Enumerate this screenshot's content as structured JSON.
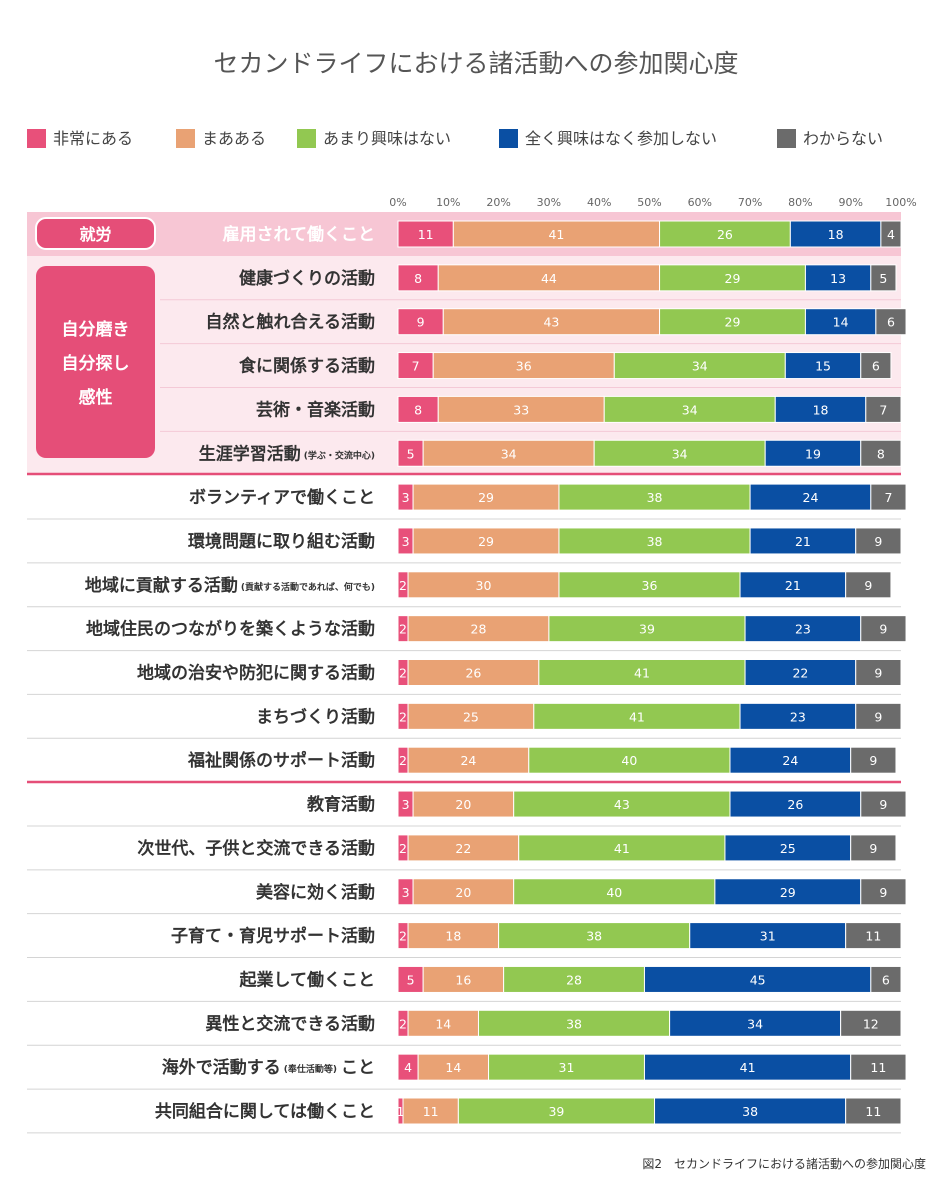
{
  "chart_data": {
    "type": "bar",
    "orientation": "horizontal-stacked",
    "title": "セカンドライフにおける諸活動への参加関心度",
    "caption": "図2　セカンドライフにおける諸活動への参加関心度",
    "xlim": [
      0,
      100
    ],
    "x_ticks": [
      "0%",
      "10%",
      "20%",
      "30%",
      "40%",
      "50%",
      "60%",
      "70%",
      "80%",
      "90%",
      "100%"
    ],
    "series": [
      {
        "name": "非常にある",
        "color": "#e8507a"
      },
      {
        "name": "まあある",
        "color": "#e9a274"
      },
      {
        "name": "あまり興味はない",
        "color": "#92c851"
      },
      {
        "name": "全く興味はなく参加しない",
        "color": "#0a4fa3"
      },
      {
        "name": "わからない",
        "color": "#6b6b6b"
      }
    ],
    "groups": [
      {
        "label": "就労",
        "start": 0,
        "end": 0
      },
      {
        "label": "自分磨き\n自分探し\n感性",
        "start": 1,
        "end": 5
      }
    ],
    "rows": [
      {
        "label": "雇用されて働くこと",
        "note": "",
        "values": [
          11,
          41,
          26,
          18,
          4
        ]
      },
      {
        "label": "健康づくりの活動",
        "note": "",
        "values": [
          8,
          44,
          29,
          13,
          5
        ]
      },
      {
        "label": "自然と触れ合える活動",
        "note": "",
        "values": [
          9,
          43,
          29,
          14,
          6
        ]
      },
      {
        "label": "食に関係する活動",
        "note": "",
        "values": [
          7,
          36,
          34,
          15,
          6
        ]
      },
      {
        "label": "芸術・音楽活動",
        "note": "",
        "values": [
          8,
          33,
          34,
          18,
          7
        ]
      },
      {
        "label": "生涯学習活動",
        "note": "(学ぶ・交流中心)",
        "values": [
          5,
          34,
          34,
          19,
          8
        ]
      },
      {
        "label": "ボランティアで働くこと",
        "note": "",
        "values": [
          3,
          29,
          38,
          24,
          7
        ]
      },
      {
        "label": "環境問題に取り組む活動",
        "note": "",
        "values": [
          3,
          29,
          38,
          21,
          9
        ]
      },
      {
        "label": "地域に貢献する活動",
        "note": "(貢献する活動であれば、何でも)",
        "values": [
          2,
          30,
          36,
          21,
          9
        ]
      },
      {
        "label": "地域住民のつながりを築くような活動",
        "note": "",
        "values": [
          2,
          28,
          39,
          23,
          9
        ]
      },
      {
        "label": "地域の治安や防犯に関する活動",
        "note": "",
        "values": [
          2,
          26,
          41,
          22,
          9
        ]
      },
      {
        "label": "まちづくり活動",
        "note": "",
        "values": [
          2,
          25,
          41,
          23,
          9
        ]
      },
      {
        "label": "福祉関係のサポート活動",
        "note": "",
        "values": [
          2,
          24,
          40,
          24,
          9
        ]
      },
      {
        "label": "教育活動",
        "note": "",
        "values": [
          3,
          20,
          43,
          26,
          9
        ]
      },
      {
        "label": "次世代、子供と交流できる活動",
        "note": "",
        "values": [
          2,
          22,
          41,
          25,
          9
        ]
      },
      {
        "label": "美容に効く活動",
        "note": "",
        "values": [
          3,
          20,
          40,
          29,
          9
        ]
      },
      {
        "label": "子育て・育児サポート活動",
        "note": "",
        "values": [
          2,
          18,
          38,
          31,
          11
        ]
      },
      {
        "label": "起業して働くこと",
        "note": "",
        "values": [
          5,
          16,
          28,
          45,
          6
        ]
      },
      {
        "label": "異性と交流できる活動",
        "note": "",
        "values": [
          2,
          14,
          38,
          34,
          12
        ]
      },
      {
        "label": "海外で活動する",
        "note": "(奉仕活動等)",
        "suffix": "こと",
        "values": [
          4,
          14,
          31,
          41,
          11
        ]
      },
      {
        "label": "共同組合に関しては働くこと",
        "note": "",
        "values": [
          1,
          11,
          39,
          38,
          11
        ]
      }
    ]
  }
}
